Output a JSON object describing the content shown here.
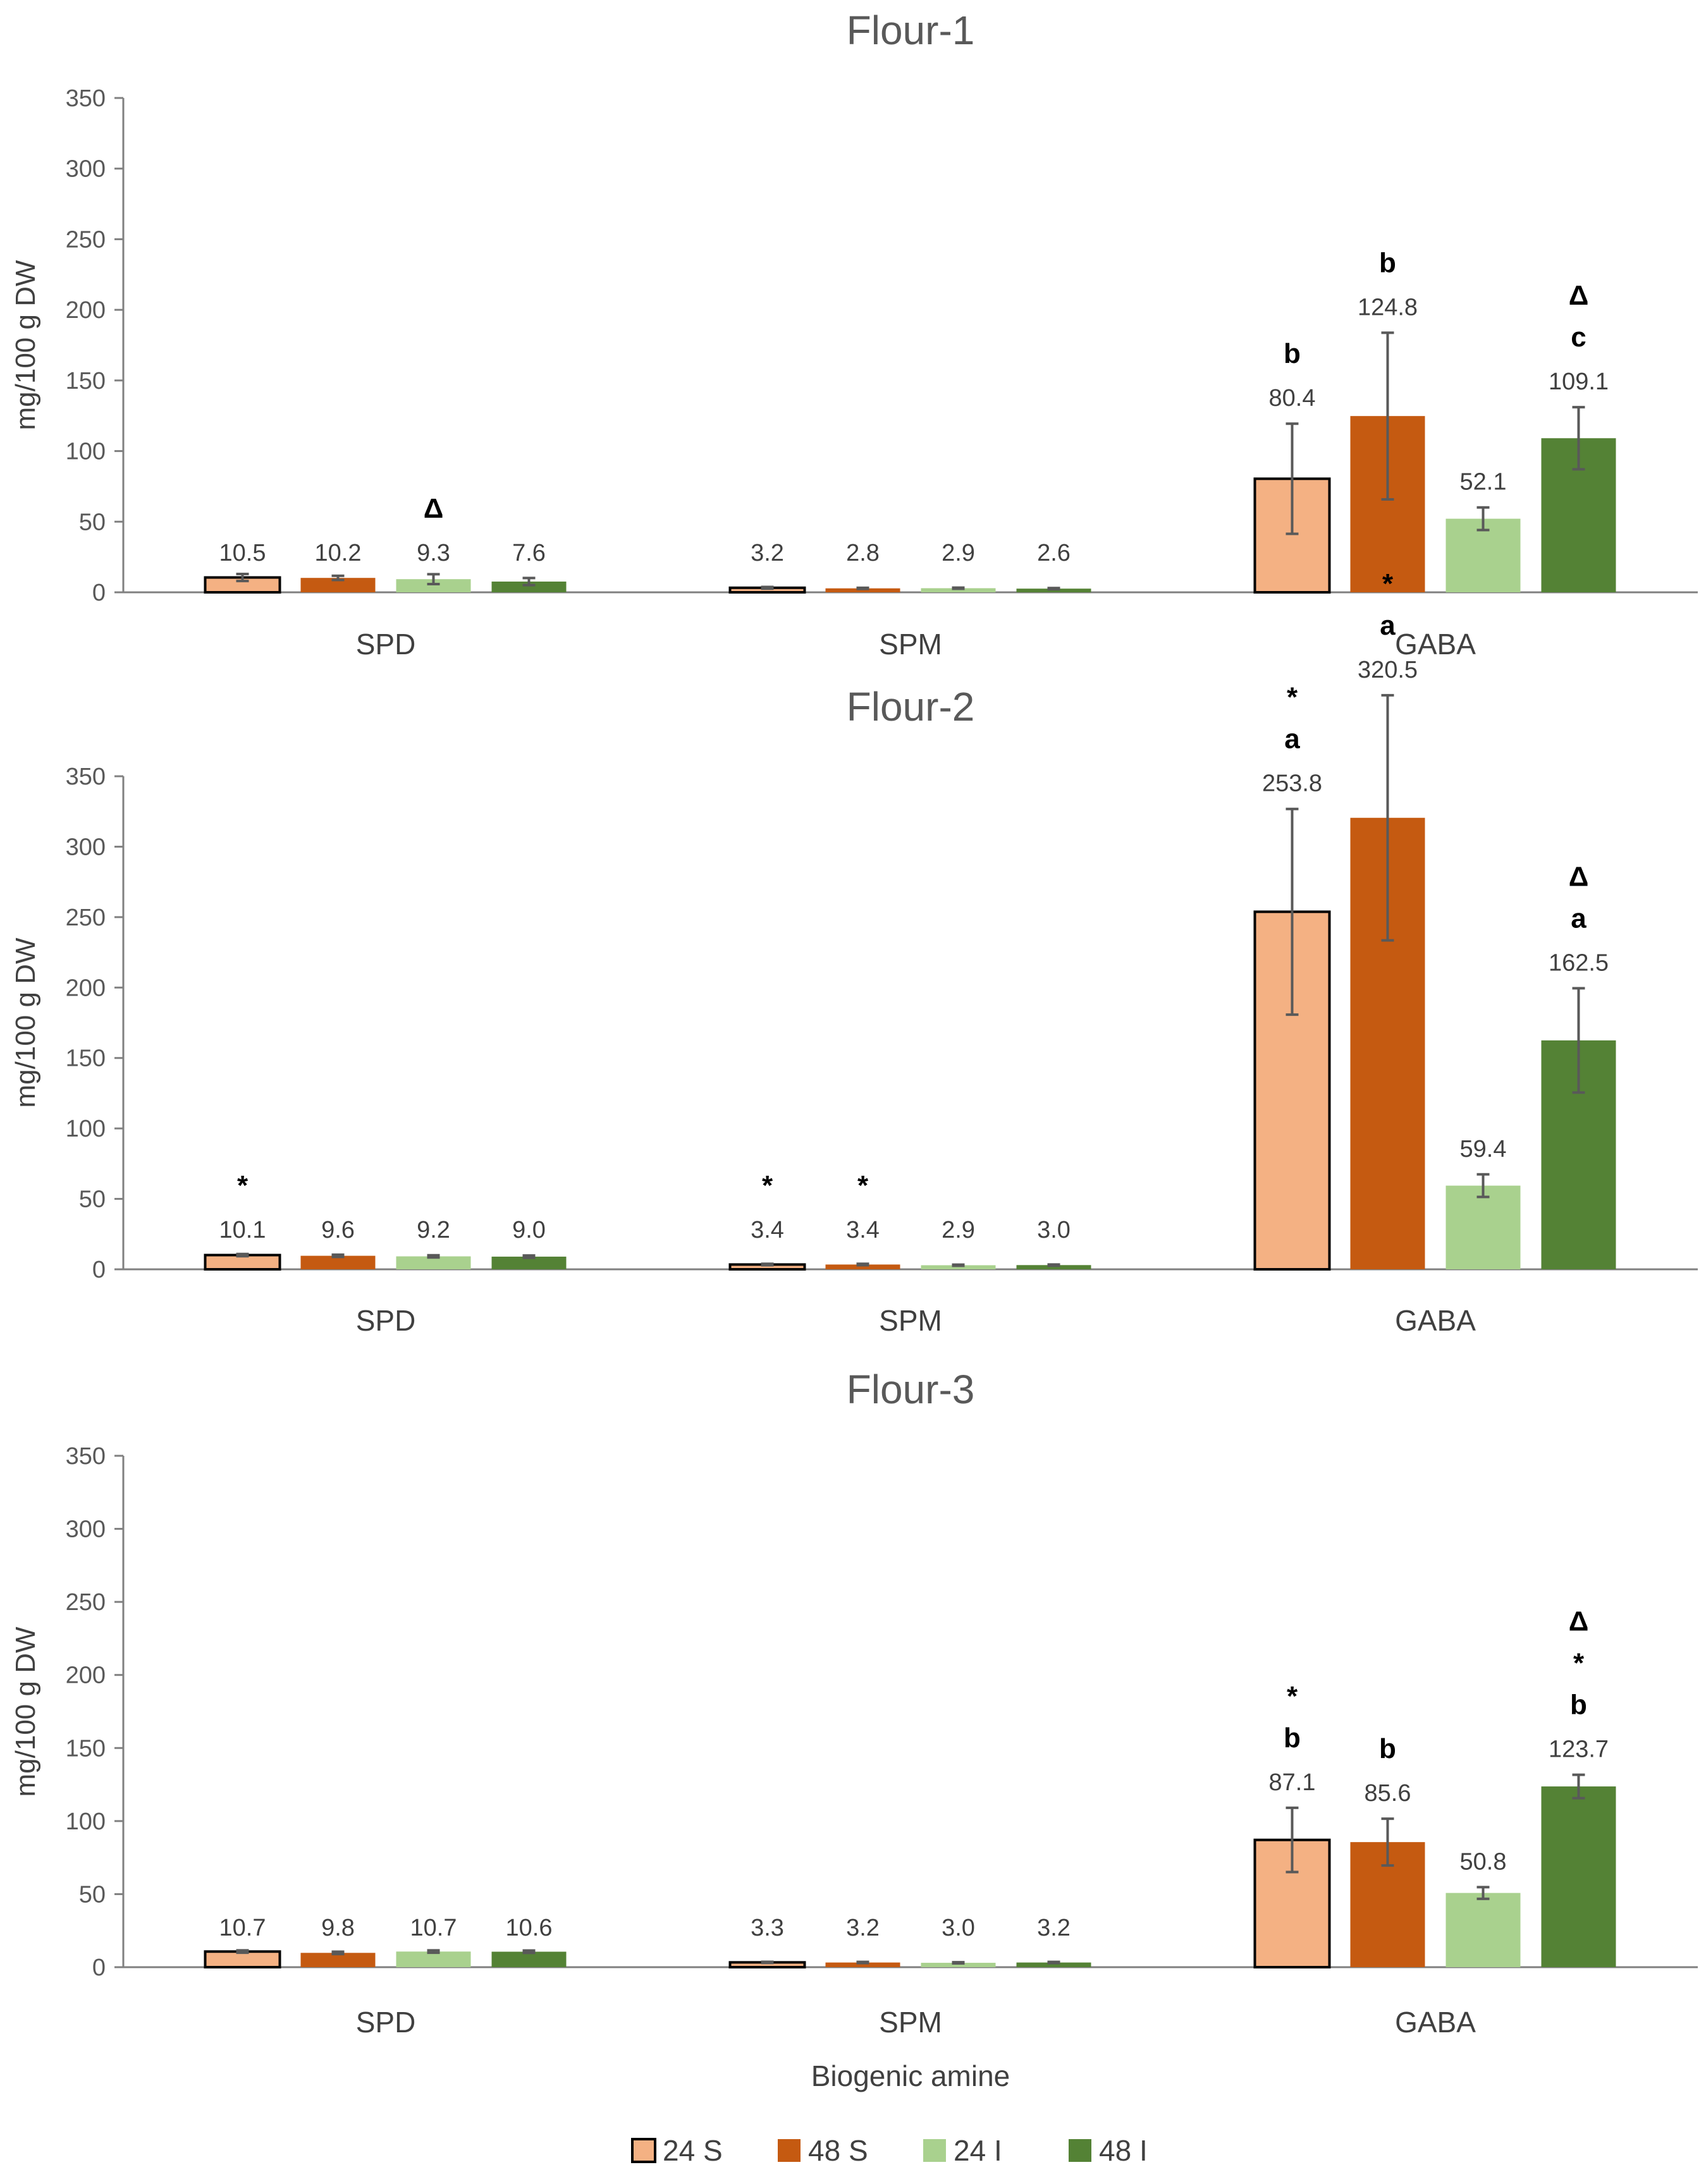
{
  "figure": {
    "xlabel": "Biogenic amine",
    "legend": [
      {
        "label": "24 S",
        "color": "#F4B183"
      },
      {
        "label": "48 S",
        "color": "#C55A11"
      },
      {
        "label": "24 I",
        "color": "#A9D18E"
      },
      {
        "label": "48 I",
        "color": "#548235"
      }
    ]
  },
  "chart_data": [
    {
      "type": "bar",
      "title": "Flour-1",
      "ylabel": "mg/100 g DW",
      "ylim": [
        0,
        350
      ],
      "yticks": [
        0,
        50,
        100,
        150,
        200,
        250,
        300,
        350
      ],
      "categories": [
        "SPD",
        "SPM",
        "GABA"
      ],
      "series": [
        {
          "name": "24 S",
          "color": "#F4B183",
          "values": [
            10.5,
            3.2,
            80.4
          ],
          "errors": [
            2.5,
            0.6,
            39
          ],
          "labels": [
            "10.5",
            "3.2",
            "80.4"
          ],
          "annotations": [
            [],
            [],
            [
              "b"
            ]
          ]
        },
        {
          "name": "48 S",
          "color": "#C55A11",
          "values": [
            10.2,
            2.8,
            124.8
          ],
          "errors": [
            1.5,
            0.4,
            59
          ],
          "labels": [
            "10.2",
            "2.8",
            "124.8"
          ],
          "annotations": [
            [],
            [],
            [
              "b"
            ]
          ]
        },
        {
          "name": "24 I",
          "color": "#A9D18E",
          "values": [
            9.3,
            2.9,
            52.1
          ],
          "errors": [
            3.5,
            0.4,
            8
          ],
          "labels": [
            "9.3",
            "2.9",
            "52.1"
          ],
          "annotations": [
            [
              "Δ"
            ],
            [],
            []
          ]
        },
        {
          "name": "48 I",
          "color": "#548235",
          "values": [
            7.6,
            2.6,
            109.1
          ],
          "errors": [
            2.5,
            0.4,
            22
          ],
          "labels": [
            "7.6",
            "2.6",
            "109.1"
          ],
          "annotations": [
            [],
            [],
            [
              "Δ",
              "c"
            ]
          ]
        }
      ]
    },
    {
      "type": "bar",
      "title": "Flour-2",
      "ylabel": "mg/100 g DW",
      "ylim": [
        0,
        350
      ],
      "yticks": [
        0,
        50,
        100,
        150,
        200,
        250,
        300,
        350
      ],
      "categories": [
        "SPD",
        "SPM",
        "GABA"
      ],
      "series": [
        {
          "name": "24 S",
          "color": "#F4B183",
          "values": [
            10.1,
            3.4,
            253.8
          ],
          "errors": [
            0.8,
            0.5,
            73
          ],
          "labels": [
            "10.1",
            "3.4",
            "253.8"
          ],
          "annotations": [
            [
              "*"
            ],
            [
              "*"
            ],
            [
              "*",
              "a"
            ]
          ]
        },
        {
          "name": "48 S",
          "color": "#C55A11",
          "values": [
            9.6,
            3.4,
            320.5
          ],
          "errors": [
            0.8,
            0.5,
            87
          ],
          "labels": [
            "9.6",
            "3.4",
            "320.5"
          ],
          "annotations": [
            [],
            [
              "*"
            ],
            [
              "*",
              "a"
            ]
          ]
        },
        {
          "name": "24 I",
          "color": "#A9D18E",
          "values": [
            9.2,
            2.9,
            59.4
          ],
          "errors": [
            0.8,
            0.4,
            8
          ],
          "labels": [
            "9.2",
            "2.9",
            "59.4"
          ],
          "annotations": [
            [],
            [],
            []
          ]
        },
        {
          "name": "48 I",
          "color": "#548235",
          "values": [
            9.0,
            3.0,
            162.5
          ],
          "errors": [
            0.8,
            0.4,
            37
          ],
          "labels": [
            "9.0",
            "3.0",
            "162.5"
          ],
          "annotations": [
            [],
            [],
            [
              "Δ",
              "a"
            ]
          ]
        }
      ]
    },
    {
      "type": "bar",
      "title": "Flour-3",
      "ylabel": "mg/100 g DW",
      "ylim": [
        0,
        350
      ],
      "yticks": [
        0,
        50,
        100,
        150,
        200,
        250,
        300,
        350
      ],
      "categories": [
        "SPD",
        "SPM",
        "GABA"
      ],
      "series": [
        {
          "name": "24 S",
          "color": "#F4B183",
          "values": [
            10.7,
            3.3,
            87.1
          ],
          "errors": [
            0.8,
            0.4,
            22
          ],
          "labels": [
            "10.7",
            "3.3",
            "87.1"
          ],
          "annotations": [
            [],
            [],
            [
              "*",
              "b"
            ]
          ]
        },
        {
          "name": "48 S",
          "color": "#C55A11",
          "values": [
            9.8,
            3.2,
            85.6
          ],
          "errors": [
            0.8,
            0.4,
            16
          ],
          "labels": [
            "9.8",
            "3.2",
            "85.6"
          ],
          "annotations": [
            [],
            [],
            [
              "b"
            ]
          ]
        },
        {
          "name": "24 I",
          "color": "#A9D18E",
          "values": [
            10.7,
            3.0,
            50.8
          ],
          "errors": [
            0.8,
            0.4,
            4
          ],
          "labels": [
            "10.7",
            "3.0",
            "50.8"
          ],
          "annotations": [
            [],
            [],
            []
          ]
        },
        {
          "name": "48 I",
          "color": "#548235",
          "values": [
            10.6,
            3.2,
            123.7
          ],
          "errors": [
            0.8,
            0.4,
            8
          ],
          "labels": [
            "10.6",
            "3.2",
            "123.7"
          ],
          "annotations": [
            [],
            [],
            [
              "Δ",
              "*",
              "b"
            ]
          ]
        }
      ]
    }
  ]
}
